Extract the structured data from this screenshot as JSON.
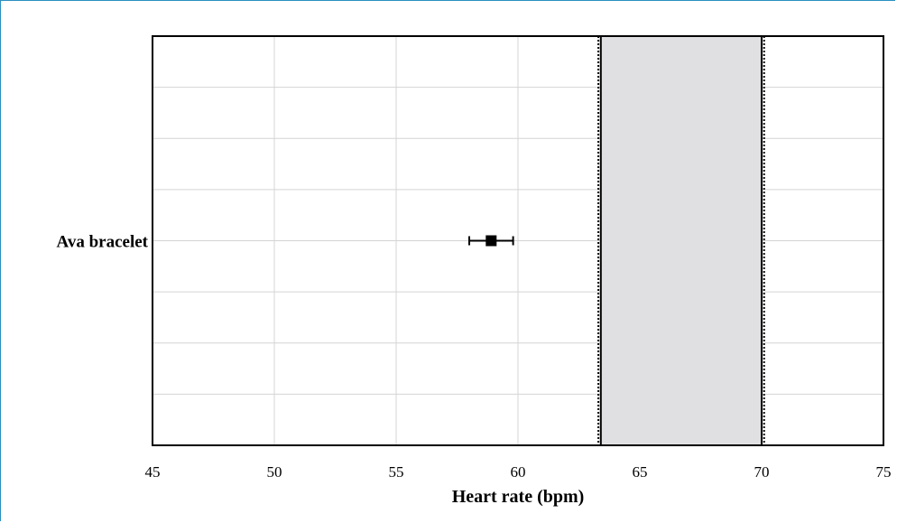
{
  "chart_data": {
    "type": "scatter",
    "title": "",
    "xlabel": "Heart rate (bpm)",
    "ylabel": "",
    "xlim": [
      45,
      75
    ],
    "xticks": [
      45,
      50,
      55,
      60,
      65,
      70,
      75
    ],
    "categories": [
      "Ava bracelet"
    ],
    "points": [
      {
        "category": "Ava bracelet",
        "value": 58.9,
        "ci_low": 58.0,
        "ci_high": 59.8
      }
    ],
    "reference_band": {
      "x_low": 63.4,
      "x_high": 70.0,
      "color": "#e0e0e2"
    },
    "dotted_lines_x": [
      63.3,
      70.1
    ],
    "grid": true
  }
}
